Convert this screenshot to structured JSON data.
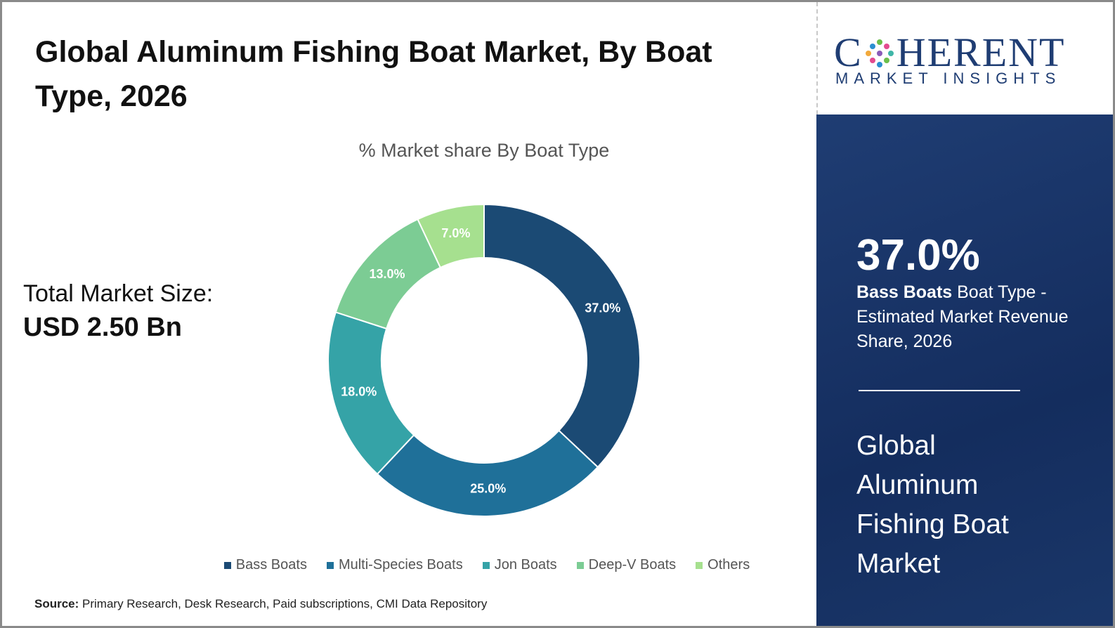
{
  "chart_data": {
    "type": "donut",
    "title": "Global Aluminum Fishing Boat Market, By Boat Type, 2026",
    "subtitle": "% Market share By Boat Type",
    "categories": [
      "Bass Boats",
      "Multi-Species Boats",
      "Jon Boats",
      "Deep-V Boats",
      "Others"
    ],
    "values": [
      37,
      25,
      18,
      13,
      7
    ],
    "value_labels": [
      "37.0%",
      "25.0%",
      "18.0%",
      "13.0%",
      "7.0%"
    ],
    "colors": [
      "#1b4a74",
      "#1f7099",
      "#35a3a7",
      "#7ccc94",
      "#a6e08f"
    ],
    "legend": "bottom"
  },
  "market_size": {
    "label": "Total Market Size:",
    "value": "USD 2.50 Bn"
  },
  "highlight": {
    "value": "37.0%",
    "segment": "Bass Boats",
    "text": "Boat Type - Estimated Market Revenue Share, 2026",
    "heading": "Global Aluminum Fishing Boat Market"
  },
  "logo": {
    "name_start": "C",
    "name_end": "HERENT",
    "tagline": "MARKET INSIGHTS"
  },
  "source": {
    "label": "Source:",
    "text": "Primary Research, Desk Research, Paid subscriptions, CMI Data Repository"
  }
}
